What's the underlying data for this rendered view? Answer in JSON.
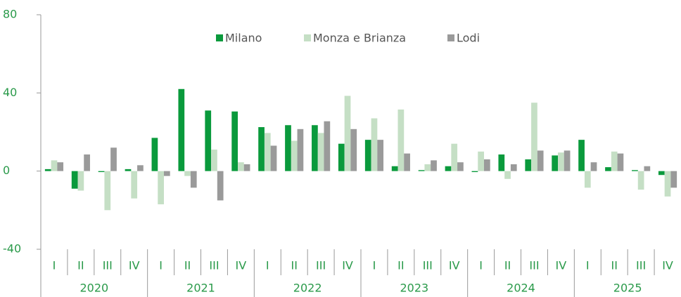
{
  "chart_data": {
    "type": "bar",
    "categories": [
      "I",
      "II",
      "III",
      "IV",
      "I",
      "II",
      "III",
      "IV",
      "I",
      "II",
      "III",
      "IV",
      "I",
      "II",
      "III",
      "IV",
      "I",
      "II",
      "III",
      "IV",
      "I",
      "II",
      "III",
      "IV"
    ],
    "years": [
      "2020",
      "2021",
      "2022",
      "2023",
      "2024",
      "2025"
    ],
    "series": [
      {
        "name": "Milano",
        "color": "#0a9a3c",
        "values": [
          1,
          -9,
          -0.5,
          1,
          17,
          42,
          31,
          30.5,
          22.5,
          23.5,
          23.5,
          14,
          16,
          2.5,
          0.5,
          2.5,
          -0.5,
          8.5,
          6,
          8,
          16,
          2,
          0.5,
          -2
        ]
      },
      {
        "name": "Monza e Brianza",
        "color": "#c5dfc5",
        "values": [
          5.5,
          -10,
          -20,
          -14,
          -17,
          -2.5,
          11,
          4.5,
          19.5,
          15.5,
          19.5,
          38.5,
          27,
          31.5,
          3.5,
          14,
          10,
          -4,
          35,
          9.5,
          -8.5,
          10,
          -9.5,
          -13
        ]
      },
      {
        "name": "Lodi",
        "color": "#9a9a9a",
        "values": [
          4.5,
          8.5,
          12,
          3,
          -2.5,
          -8.5,
          -15,
          3.5,
          13,
          21.5,
          25.5,
          21.5,
          16,
          9,
          5.5,
          4.5,
          6,
          3.5,
          10.5,
          10.5,
          4.5,
          9,
          2.5,
          -8.5
        ]
      }
    ],
    "ylim": [
      -40,
      80
    ],
    "yticks": [
      -40,
      0,
      40,
      80
    ]
  }
}
